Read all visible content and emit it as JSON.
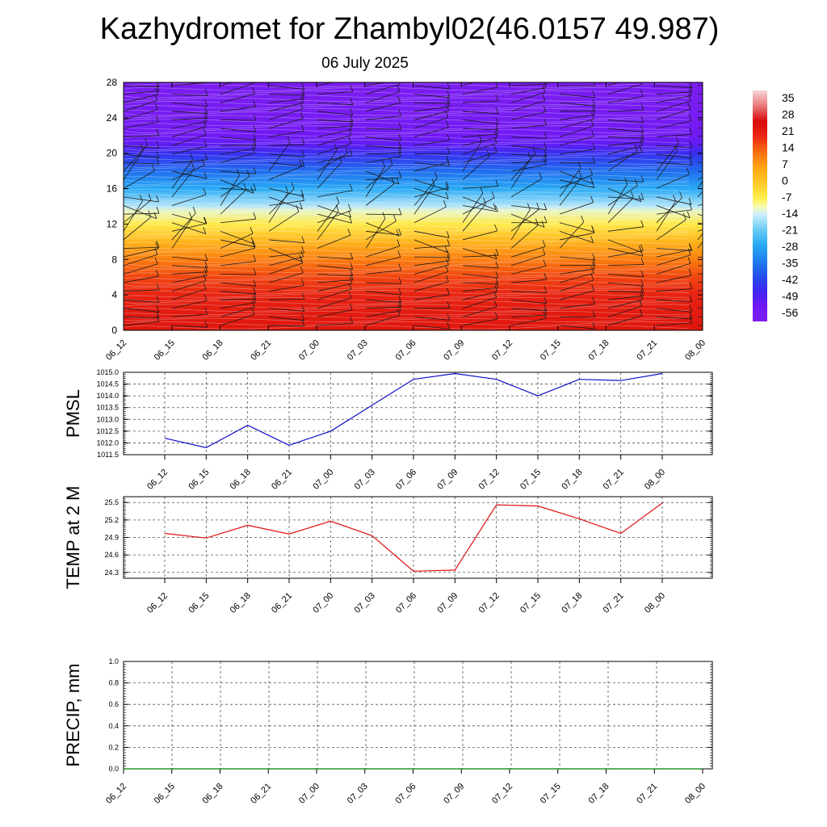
{
  "title": "Kazhydromet for Zhambyl02(46.0157 49.987)",
  "subtitle": "06 July 2025",
  "time_labels": [
    "06_12",
    "06_15",
    "06_18",
    "06_21",
    "07_00",
    "07_03",
    "07_06",
    "07_09",
    "07_12",
    "07_15",
    "07_18",
    "07_21",
    "08_00"
  ],
  "chart_data": [
    {
      "type": "heatmap",
      "y_ticks": [
        0,
        4,
        8,
        12,
        16,
        20,
        24,
        28
      ],
      "ylim": [
        0,
        28
      ],
      "colorbar": {
        "labels": [
          "35",
          "28",
          "21",
          "14",
          "7",
          "0",
          "-7",
          "-14",
          "-21",
          "-28",
          "-35",
          "-42",
          "-49",
          "-56"
        ],
        "range": [
          -63,
          42
        ]
      },
      "levels": [
        0,
        2,
        4,
        6,
        8,
        10,
        12,
        13.5,
        14,
        16,
        18,
        20,
        21,
        22,
        24,
        26,
        28
      ],
      "temperatures": [
        25,
        24,
        22,
        18,
        12,
        4,
        -6,
        -12,
        -16,
        -28,
        -38,
        -48,
        -54,
        -58,
        -60,
        -61,
        -62
      ]
    },
    {
      "type": "line",
      "ylabel": "PMSL",
      "ylim": [
        1011.5,
        1015.0
      ],
      "y_ticks": [
        "1015.0",
        "1014.5",
        "1014.0",
        "1013.5",
        "1013.0",
        "1012.5",
        "1012.0",
        "1011.5"
      ],
      "series": [
        {
          "color": "#1010c8",
          "values": [
            1012.2,
            1011.8,
            1012.75,
            1011.9,
            1012.5,
            1013.6,
            1014.7,
            1014.95,
            1014.7,
            1014.0,
            1014.7,
            1014.65,
            1014.95
          ]
        }
      ]
    },
    {
      "type": "line",
      "ylabel": "TEMP at 2 M",
      "ylim": [
        24.2,
        25.6
      ],
      "y_ticks": [
        "25.5",
        "25.2",
        "24.9",
        "24.6",
        "24.3"
      ],
      "series": [
        {
          "color": "#e01010",
          "values": [
            24.97,
            24.89,
            25.11,
            24.96,
            25.18,
            24.93,
            24.32,
            24.34,
            25.46,
            25.44,
            25.22,
            24.97,
            25.49
          ]
        }
      ]
    },
    {
      "type": "line",
      "ylabel": "PRECIP, mm",
      "ylim": [
        0,
        1.0
      ],
      "y_ticks": [
        "1.0",
        "0.8",
        "0.6",
        "0.4",
        "0.2",
        "0.0"
      ],
      "series": [
        {
          "color": "#008000",
          "values": [
            0,
            0,
            0,
            0,
            0,
            0,
            0,
            0,
            0,
            0,
            0,
            0,
            0
          ]
        }
      ]
    }
  ]
}
